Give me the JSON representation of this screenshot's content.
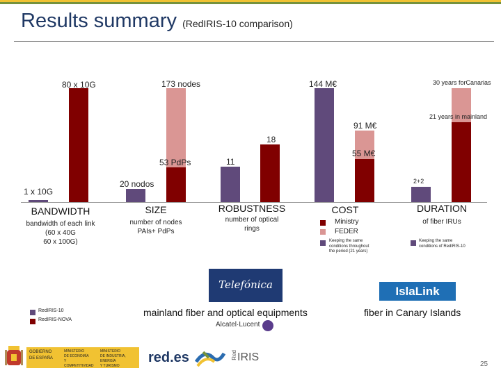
{
  "slide": {
    "title": "Results summary",
    "subtitle": "(RedIRIS-10 comparison)",
    "page_number": "25"
  },
  "chart_data": {
    "type": "bar",
    "title": "Results summary (RedIRIS-10 comparison)",
    "series": [
      {
        "name": "RedIRIS-10",
        "color": "#604a7b"
      },
      {
        "name": "RedIRIS-NOVA",
        "color": "#800000"
      }
    ],
    "groups": [
      {
        "category": "BANDWIDTH",
        "description": "bandwidth of each link (60 x 40G 60 x 100G)",
        "bars": [
          {
            "series": "RedIRIS-10",
            "label": "1 x 10G",
            "value": 1
          },
          {
            "series": "RedIRIS-NOVA",
            "label": "80 x 10G",
            "value": 80
          }
        ]
      },
      {
        "category": "SIZE",
        "description": "number of nodes PAIs+ PdPs",
        "bars": [
          {
            "series": "RedIRIS-10",
            "label": "20 nodos",
            "value": 20
          },
          {
            "series": "RedIRIS-NOVA",
            "label": "53 PdPs",
            "value": 53,
            "stack_top_label": "173 nodes",
            "stack_total": 173
          }
        ]
      },
      {
        "category": "ROBUSTNESS",
        "description": "number of optical rings",
        "bars": [
          {
            "series": "RedIRIS-10",
            "label": "11",
            "value": 11
          },
          {
            "series": "RedIRIS-NOVA",
            "label": "18",
            "value": 18
          }
        ]
      },
      {
        "category": "COST",
        "description": "",
        "bars": [
          {
            "series": "RedIRIS-10",
            "label": "144 M€",
            "value": 144
          },
          {
            "series": "RedIRIS-NOVA",
            "label": "55 M€",
            "value": 55,
            "stack_top_label": "91 M€",
            "stack_total": 91
          }
        ]
      },
      {
        "category": "DURATION",
        "description": "of fiber IRUs",
        "bars": [
          {
            "series": "RedIRIS-10",
            "label": "2+2",
            "value": 4
          },
          {
            "series": "RedIRIS-NOVA",
            "label": "21 years in mainland",
            "value": 21,
            "stack_top_label": "30 years forCanarias",
            "stack_total": 30
          }
        ]
      }
    ]
  },
  "labels": {
    "bw_top": "80 x 10G",
    "bw_bottom": "1 x 10G",
    "size_top": "173 nodes",
    "size_mid": "53 PdPs",
    "size_bottom": "20 nodos",
    "rob_top": "18",
    "rob_bottom": "11",
    "cost_top": "144 M€",
    "cost_mid": "91 M€",
    "cost_bottom": "55 M€",
    "dur_top": "30 years forCanarias",
    "dur_mid": "21 years in mainland",
    "dur_bottom": "2+2"
  },
  "categories": {
    "bandwidth": "BANDWIDTH",
    "bandwidth_desc_1": "bandwidth of each link",
    "bandwidth_desc_2": "(60 x 40G",
    "bandwidth_desc_3": "60 x 100G)",
    "size": "SIZE",
    "size_desc_1": "number of nodes",
    "size_desc_2": "PAIs+ PdPs",
    "robustness": "ROBUSTNESS",
    "robustness_desc_1": "number of optical",
    "robustness_desc_2": "rings",
    "cost": "COST",
    "duration": "DURATION",
    "duration_desc": "of fiber IRUs"
  },
  "cost_legend": {
    "ministry_1": "Ministry",
    "ministry_2": "FEDER",
    "note_1": "Keeping the same",
    "note_2": "conditions throughout",
    "note_3": "the period (21 years)"
  },
  "duration_legend": {
    "note_1": "Keeping the same",
    "note_2": "conditions of RedIRIS-10"
  },
  "series_legend": {
    "old": "RedIRIS-10",
    "new": "RedIRIS-NOVA"
  },
  "providers": {
    "telefonica": "Telefónica",
    "telefonica_desc": "mainland fiber and optical equipments",
    "alcatel": "Alcatel·Lucent",
    "islalink": "IslaLink",
    "islalink_desc": "fiber in Canary Islands"
  },
  "footer": {
    "gob_1": "GOBIERNO",
    "gob_2": "DE ESPAÑA",
    "min1_1": "MINISTERIO",
    "min1_2": "DE ECONOMÍA",
    "min1_3": "Y COMPETITIVIDAD",
    "min2_1": "MINISTERIO",
    "min2_2": "DE INDUSTRIA, ENERGÍA",
    "min2_3": "Y TURISMO",
    "redes": "red.es",
    "rediris": "IRIS",
    "rediris_prefix": "Red"
  },
  "colors": {
    "redirisnova": "#800000",
    "redirisnova_extra": "#da9694",
    "rediris10": "#604a7b",
    "title": "#1f3864",
    "accent_green": "#76923c",
    "accent_yellow": "#ffc000"
  }
}
